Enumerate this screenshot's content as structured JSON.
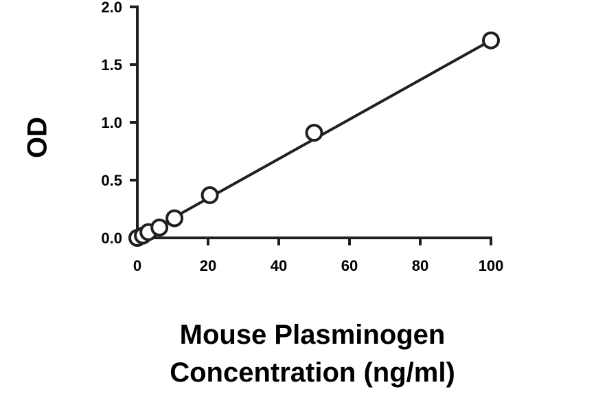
{
  "colors": {
    "ink": "#231f20",
    "text": "#000000",
    "marker_fill": "#ffffff",
    "background": "#ffffff"
  },
  "chart_data": {
    "type": "scatter",
    "title": "",
    "xlabel_lines": [
      "Mouse Plasminogen",
      "Concentration (ng/ml)"
    ],
    "ylabel": "OD",
    "xlim": [
      0,
      100
    ],
    "ylim": [
      0,
      2.0
    ],
    "x_ticks": [
      0,
      20,
      40,
      60,
      80,
      100
    ],
    "y_ticks": [
      0.0,
      0.5,
      1.0,
      1.5,
      2.0
    ],
    "x_tick_labels": [
      "0",
      "20",
      "40",
      "60",
      "80",
      "100"
    ],
    "y_tick_labels": [
      "0.0",
      "0.5",
      "1.0",
      "1.5",
      "2.0"
    ],
    "grid": false,
    "legend": "none",
    "series": [
      {
        "x": [
          0,
          1.56,
          3.13,
          6.25,
          10.5,
          20.5,
          50,
          100
        ],
        "y": [
          0.0,
          0.02,
          0.05,
          0.09,
          0.17,
          0.37,
          0.91,
          1.71
        ]
      }
    ],
    "fit_line": {
      "kind": "linear",
      "x": [
        0,
        100
      ],
      "y": [
        0.0,
        1.71
      ]
    }
  }
}
